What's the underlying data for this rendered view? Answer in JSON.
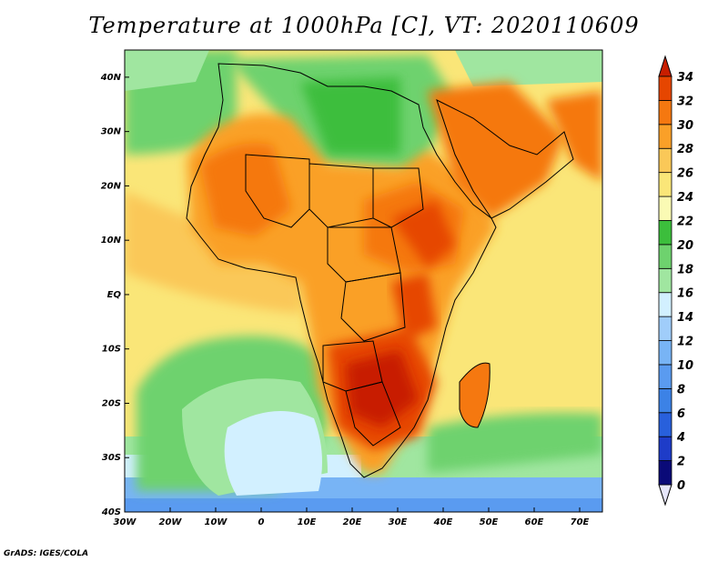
{
  "title": "Temperature at 1000hPa [C], VT: 2020110609",
  "credit": "GrADS: IGES/COLA",
  "lat_ticks": [
    "40N",
    "30N",
    "20N",
    "10N",
    "EQ",
    "10S",
    "20S",
    "30S",
    "40S"
  ],
  "lon_ticks": [
    "30W",
    "20W",
    "10W",
    "0",
    "10E",
    "20E",
    "30E",
    "40E",
    "50E",
    "60E",
    "70E"
  ],
  "colorbar": {
    "levels": [
      "0",
      "2",
      "4",
      "6",
      "8",
      "10",
      "12",
      "14",
      "16",
      "18",
      "20",
      "22",
      "24",
      "26",
      "28",
      "30",
      "32",
      "34"
    ],
    "colors": [
      "#0a0a78",
      "#1e3cc8",
      "#2860dc",
      "#3c82e6",
      "#5a9bf0",
      "#78b4f5",
      "#a0cdfa",
      "#d2f0ff",
      "#a0e6a0",
      "#6ed26e",
      "#3cbe3c",
      "#fafab4",
      "#fae678",
      "#fac858",
      "#faa028",
      "#f57810",
      "#e64600",
      "#c81e00"
    ],
    "below_color": "#e6e6fa"
  },
  "map_extent": {
    "lon": [
      -30,
      75
    ],
    "lat": [
      -40,
      45
    ]
  }
}
